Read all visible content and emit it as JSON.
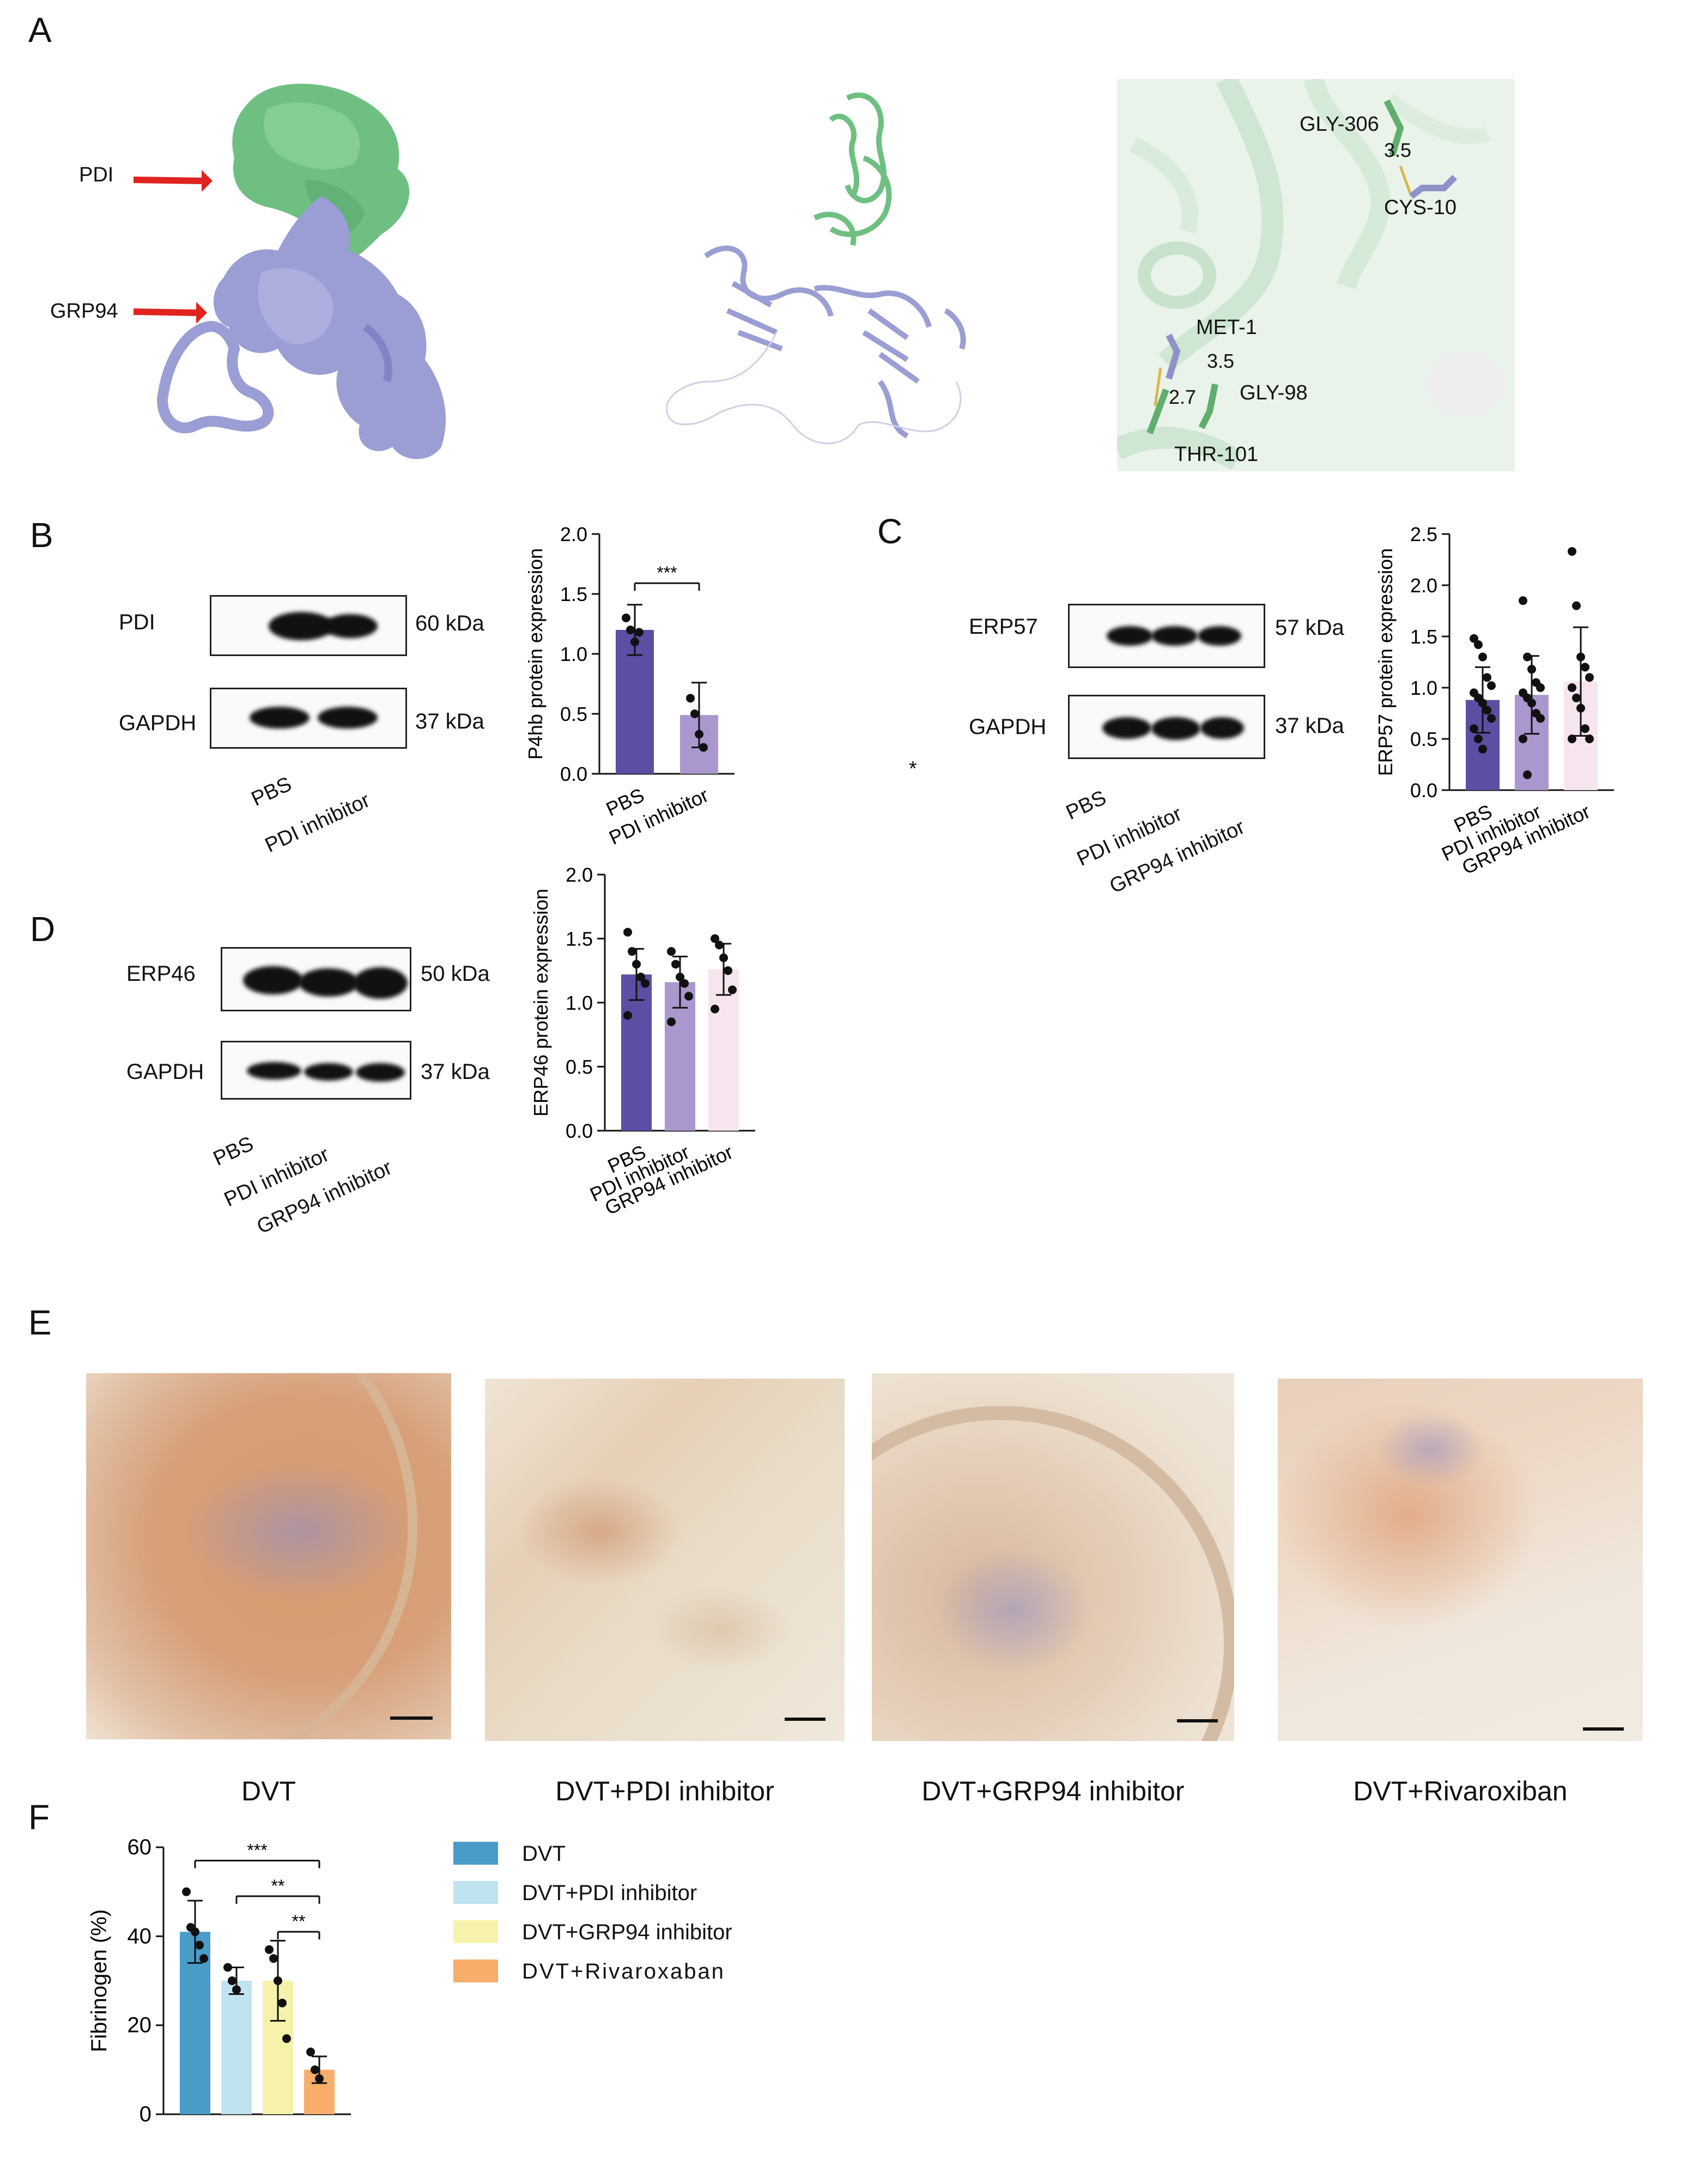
{
  "panels": {
    "A": "A",
    "B": "B",
    "C": "C",
    "D": "D",
    "E": "E",
    "F": "F"
  },
  "colors": {
    "pdi_green": "#6fbf82",
    "grp94_lavender": "#9a9ed4",
    "arrow_red": "#e0231f",
    "bar_pbs": "#5a4fa3",
    "bar_pdi": "#a997cd",
    "bar_grp94": "#f6e4ef",
    "dvt": "#4a9cc8",
    "dvt_pdi": "#bfe3ef",
    "dvt_grp94": "#f6f2ab",
    "dvt_riva": "#f6ae6a"
  },
  "panel_a": {
    "pdi_label": "PDI",
    "grp94_label": "GRP94",
    "residue_labels": [
      "GLY-306",
      "CYS-10",
      "MET-1",
      "GLY-98",
      "THR-101"
    ],
    "distances": [
      "3.5",
      "3.5",
      "2.7"
    ]
  },
  "panel_b": {
    "blot_labels": [
      "PDI",
      "GAPDH"
    ],
    "kda": [
      "60 kDa",
      "37 kDa"
    ],
    "lanes": [
      "PBS",
      "PDI inhibitor"
    ]
  },
  "panel_c": {
    "blot_labels": [
      "ERP57",
      "GAPDH"
    ],
    "kda": [
      "57 kDa",
      "37 kDa"
    ],
    "lanes": [
      "PBS",
      "PDI inhibitor",
      "GRP94 inhibitor"
    ],
    "stray_mark": "*"
  },
  "panel_d": {
    "blot_labels": [
      "ERP46",
      "GAPDH"
    ],
    "kda": [
      "50 kDa",
      "37 kDa"
    ],
    "lanes": [
      "PBS",
      "PDI inhibitor",
      "GRP94 inhibitor"
    ]
  },
  "panel_e": {
    "captions": [
      "DVT",
      "DVT+PDI inhibitor",
      "DVT+GRP94 inhibitor",
      "DVT+Rivaroxiban"
    ]
  },
  "panel_f": {
    "legend": [
      "DVT",
      "DVT+PDI inhibitor",
      "DVT+GRP94 inhibitor",
      "DVT+Rivaroxaban"
    ]
  },
  "chart_data": [
    {
      "id": "B",
      "type": "bar",
      "categories": [
        "PBS",
        "PDI inhibitor"
      ],
      "values": [
        1.2,
        0.49
      ],
      "error": [
        0.21,
        0.27
      ],
      "points": [
        [
          1.3,
          1.2,
          1.1,
          1.18
        ],
        [
          0.63,
          0.5,
          0.33,
          0.22
        ]
      ],
      "ylabel": "P4hb protein expression",
      "ylim": [
        0,
        2.0
      ],
      "yticks": [
        "0.0",
        "0.5",
        "1.0",
        "1.5",
        "2.0"
      ],
      "significance": [
        {
          "pair": [
            0,
            1
          ],
          "label": "***"
        }
      ]
    },
    {
      "id": "C",
      "type": "bar",
      "categories": [
        "PBS",
        "PDI inhibitor",
        "GRP94 inhibitor"
      ],
      "values": [
        0.88,
        0.93,
        1.06
      ],
      "error": [
        0.32,
        0.38,
        0.53
      ],
      "points": [
        [
          1.48,
          1.42,
          1.3,
          1.1,
          1.02,
          0.95,
          0.9,
          0.85,
          0.78,
          0.7,
          0.6,
          0.5,
          0.4
        ],
        [
          1.85,
          1.3,
          1.18,
          1.05,
          1.0,
          0.95,
          0.9,
          0.85,
          0.75,
          0.7,
          0.5,
          0.15
        ],
        [
          2.33,
          1.8,
          1.3,
          1.2,
          1.1,
          1.0,
          0.9,
          0.8,
          0.6,
          0.5,
          0.5
        ]
      ],
      "ylabel": "ERP57 protein expression",
      "ylim": [
        0,
        2.5
      ],
      "yticks": [
        "0.0",
        "0.5",
        "1.0",
        "1.5",
        "2.0",
        "2.5"
      ]
    },
    {
      "id": "D",
      "type": "bar",
      "categories": [
        "PBS",
        "PDI inhibitor",
        "GRP94 inhibitor"
      ],
      "values": [
        1.22,
        1.16,
        1.26
      ],
      "error": [
        0.2,
        0.2,
        0.2
      ],
      "points": [
        [
          1.55,
          1.4,
          1.3,
          1.2,
          1.15,
          0.9
        ],
        [
          1.4,
          1.3,
          1.2,
          1.15,
          1.05,
          0.85
        ],
        [
          1.5,
          1.45,
          1.35,
          1.25,
          1.1,
          0.95
        ]
      ],
      "ylabel": "ERP46 protein expression",
      "ylim": [
        0,
        2.0
      ],
      "yticks": [
        "0.0",
        "0.5",
        "1.0",
        "1.5",
        "2.0"
      ]
    },
    {
      "id": "F",
      "type": "bar",
      "categories": [
        "DVT",
        "DVT+PDI inhibitor",
        "DVT+GRP94 inhibitor",
        "DVT+Rivaroxaban"
      ],
      "values": [
        41,
        30,
        30,
        10
      ],
      "error": [
        7,
        3,
        9,
        3
      ],
      "points": [
        [
          50,
          42,
          41,
          38,
          35
        ],
        [
          33,
          30,
          28
        ],
        [
          37,
          35,
          30,
          25,
          17
        ],
        [
          14,
          10,
          8
        ]
      ],
      "ylabel": "Fibrinogen (%)",
      "ylim": [
        0,
        60
      ],
      "yticks": [
        "0",
        "20",
        "40",
        "60"
      ],
      "significance": [
        {
          "pair": [
            0,
            3
          ],
          "label": "***"
        },
        {
          "pair": [
            1,
            3
          ],
          "label": "**"
        },
        {
          "pair": [
            2,
            3
          ],
          "label": "**"
        }
      ]
    }
  ]
}
